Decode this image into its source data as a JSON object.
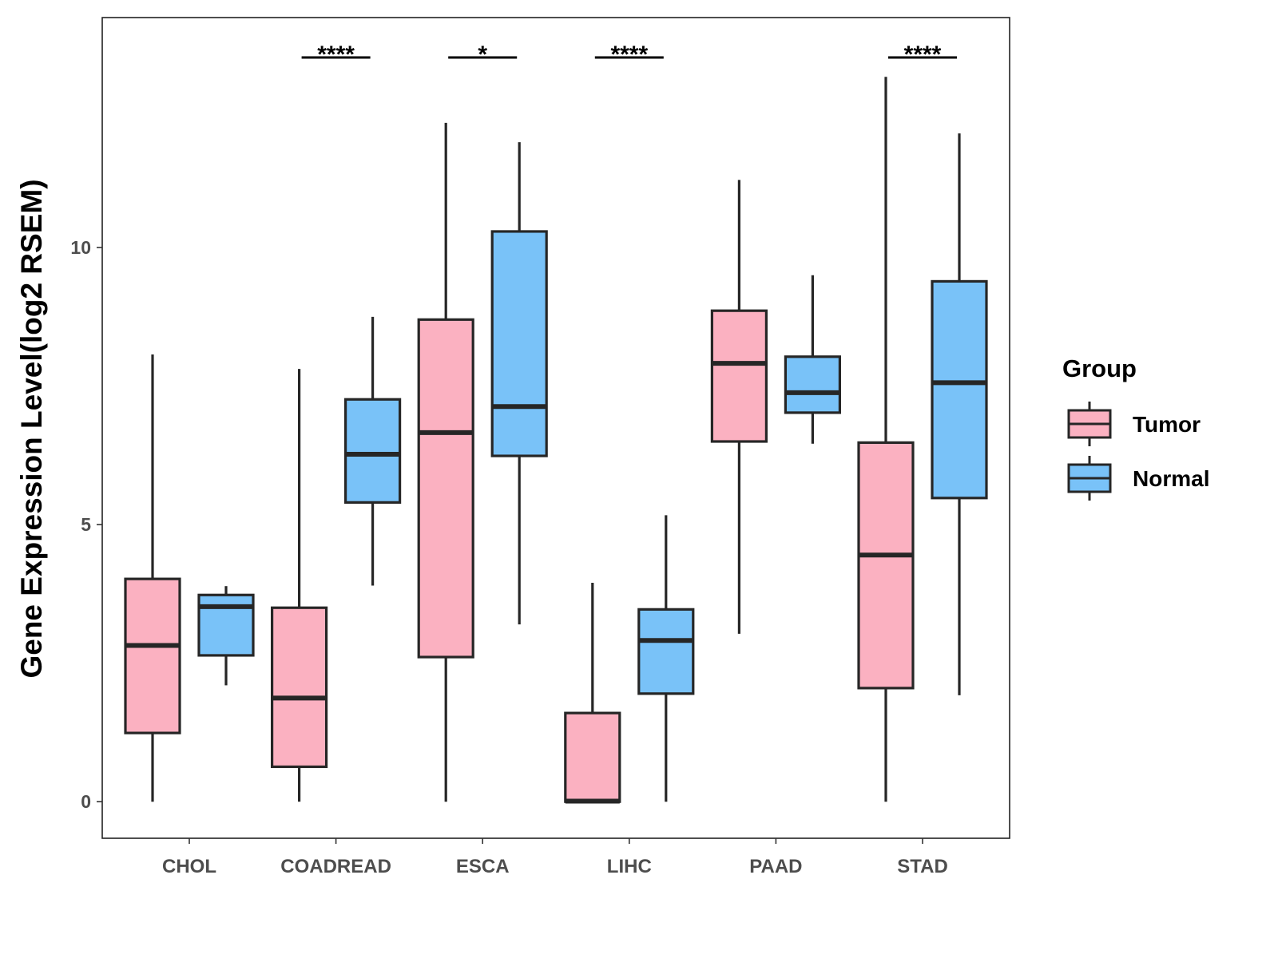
{
  "chart_data": {
    "type": "boxplot",
    "title": "",
    "xlabel": "",
    "ylabel": "Gene Expression Level(log2 RSEM)",
    "ylim": [
      -0.66,
      14.15
    ],
    "yticks": [
      0,
      5,
      10
    ],
    "grid": false,
    "legend": {
      "title": "Group",
      "placement": "right",
      "entries": [
        "Tumor",
        "Normal"
      ]
    },
    "colors": {
      "Tumor": "#FBB1C1",
      "Normal": "#79C2F8"
    },
    "categories": [
      "CHOL",
      "COADREAD",
      "ESCA",
      "LIHC",
      "PAAD",
      "STAD"
    ],
    "series": [
      {
        "name": "Tumor",
        "boxes": [
          {
            "min": 0,
            "q1": 1.24,
            "median": 2.82,
            "q3": 4.02,
            "max": 8.07
          },
          {
            "min": 0,
            "q1": 0.63,
            "median": 1.87,
            "q3": 3.5,
            "max": 7.81
          },
          {
            "min": 0,
            "q1": 2.61,
            "median": 6.66,
            "q3": 8.7,
            "max": 12.25
          },
          {
            "min": 0,
            "q1": 0,
            "median": 0.01,
            "q3": 1.6,
            "max": 3.95
          },
          {
            "min": 3.03,
            "q1": 6.5,
            "median": 7.91,
            "q3": 8.86,
            "max": 11.22
          },
          {
            "min": 0,
            "q1": 2.05,
            "median": 4.45,
            "q3": 6.48,
            "max": 13.08
          }
        ]
      },
      {
        "name": "Normal",
        "boxes": [
          {
            "min": 2.1,
            "q1": 2.64,
            "median": 3.52,
            "q3": 3.73,
            "max": 3.89
          },
          {
            "min": 3.9,
            "q1": 5.4,
            "median": 6.27,
            "q3": 7.26,
            "max": 8.75
          },
          {
            "min": 3.2,
            "q1": 6.24,
            "median": 7.13,
            "q3": 10.29,
            "max": 11.9
          },
          {
            "min": 0,
            "q1": 1.95,
            "median": 2.91,
            "q3": 3.47,
            "max": 5.17
          },
          {
            "min": 6.46,
            "q1": 7.02,
            "median": 7.38,
            "q3": 8.03,
            "max": 9.5
          },
          {
            "min": 1.92,
            "q1": 5.48,
            "median": 7.56,
            "q3": 9.39,
            "max": 12.06
          }
        ]
      }
    ],
    "annotations": [
      {
        "category": "COADREAD",
        "label": "****",
        "y": 13.43
      },
      {
        "category": "ESCA",
        "label": "*",
        "y": 13.43
      },
      {
        "category": "LIHC",
        "label": "****",
        "y": 13.43
      },
      {
        "category": "STAD",
        "label": "****",
        "y": 13.43
      }
    ]
  }
}
